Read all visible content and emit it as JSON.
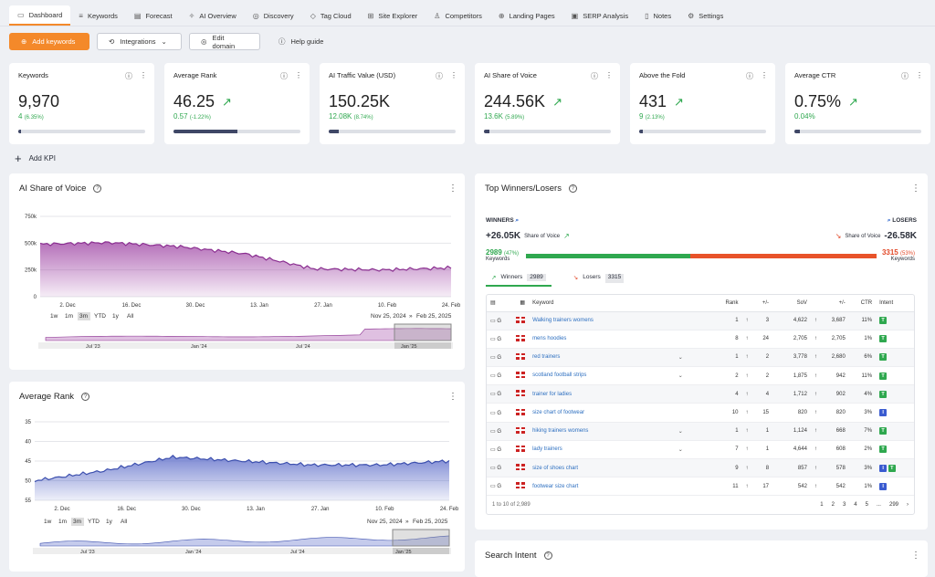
{
  "nav": [
    {
      "label": "Dashboard",
      "icon": "dashboard-icon",
      "glyph": "▭",
      "active": true
    },
    {
      "label": "Keywords",
      "icon": "keywords-icon",
      "glyph": "≡"
    },
    {
      "label": "Forecast",
      "icon": "forecast-icon",
      "glyph": "▤"
    },
    {
      "label": "AI Overview",
      "icon": "ai-sparkle-icon",
      "glyph": "✧"
    },
    {
      "label": "Discovery",
      "icon": "compass-icon",
      "glyph": "◎"
    },
    {
      "label": "Tag Cloud",
      "icon": "tag-icon",
      "glyph": "◇"
    },
    {
      "label": "Site Explorer",
      "icon": "sitemap-icon",
      "glyph": "⊞"
    },
    {
      "label": "Competitors",
      "icon": "trophy-icon",
      "glyph": "♙"
    },
    {
      "label": "Landing Pages",
      "icon": "target-icon",
      "glyph": "⊕"
    },
    {
      "label": "SERP Analysis",
      "icon": "serp-icon",
      "glyph": "▣"
    },
    {
      "label": "Notes",
      "icon": "notes-icon",
      "glyph": "▯"
    },
    {
      "label": "Settings",
      "icon": "gear-icon",
      "glyph": "⚙"
    }
  ],
  "actions": {
    "add_keywords": "Add keywords",
    "integrations": "Integrations",
    "edit_domain": "Edit domain",
    "help_guide": "Help guide"
  },
  "kpis": [
    {
      "title": "Keywords",
      "value": "9,970",
      "delta": "4",
      "pct": "(6.35%)",
      "trend": false,
      "bar": 0.02
    },
    {
      "title": "Average Rank",
      "value": "46.25",
      "delta": "0.57",
      "pct": "(-1.22%)",
      "trend": true,
      "bar": 0.5
    },
    {
      "title": "AI Traffic Value (USD)",
      "value": "150.25K",
      "delta": "12.08K",
      "pct": "(8.74%)",
      "trend": false,
      "bar": 0.08
    },
    {
      "title": "AI Share of Voice",
      "value": "244.56K",
      "delta": "13.6K",
      "pct": "(5.89%)",
      "trend": true,
      "bar": 0.04
    },
    {
      "title": "Above the Fold",
      "value": "431",
      "delta": "9",
      "pct": "(2.13%)",
      "trend": true,
      "bar": 0.03
    },
    {
      "title": "Average CTR",
      "value": "0.75%",
      "delta": "0.04%",
      "pct": "",
      "trend": true,
      "bar": 0.04
    }
  ],
  "add_kpi": "Add KPI",
  "sov": {
    "title": "AI Share of Voice",
    "yticks": [
      "750k",
      "500k",
      "250k",
      "0"
    ],
    "xticks": [
      "2. Dec",
      "16. Dec",
      "30. Dec",
      "13. Jan",
      "27. Jan",
      "10. Feb",
      "24. Feb"
    ],
    "ranges": [
      "1w",
      "1m",
      "3m",
      "YTD",
      "1y",
      "All"
    ],
    "selected": "3m",
    "from": "Nov 25, 2024",
    "to": "Feb 25, 2025",
    "nav_ticks": [
      "Jul '23",
      "Jan '24",
      "Jul '24",
      "Jan '25"
    ]
  },
  "rank": {
    "title": "Average Rank",
    "yticks": [
      "35",
      "40",
      "45",
      "50",
      "55"
    ],
    "xticks": [
      "2. Dec",
      "16. Dec",
      "30. Dec",
      "13. Jan",
      "27. Jan",
      "10. Feb",
      "24. Feb"
    ],
    "ranges": [
      "1w",
      "1m",
      "3m",
      "YTD",
      "1y",
      "All"
    ],
    "selected": "3m",
    "from": "Nov 25, 2024",
    "to": "Feb 25, 2025",
    "nav_ticks": [
      "Jul '23",
      "Jan '24",
      "Jul '24",
      "Jan '25"
    ]
  },
  "chart_data": [
    {
      "type": "area",
      "title": "AI Share of Voice",
      "xlabel": "",
      "ylabel": "",
      "ylim": [
        0,
        750000
      ],
      "x": [
        "2. Dec",
        "16. Dec",
        "30. Dec",
        "13. Jan",
        "27. Jan",
        "10. Feb",
        "24. Feb"
      ],
      "series": [
        {
          "values": [
            490000,
            505000,
            470000,
            400000,
            260000,
            250000,
            270000
          ]
        }
      ]
    },
    {
      "type": "area",
      "title": "Average Rank",
      "xlabel": "",
      "ylabel": "",
      "ylim": [
        35,
        55
      ],
      "x": [
        "2. Dec",
        "16. Dec",
        "30. Dec",
        "13. Jan",
        "27. Jan",
        "10. Feb",
        "24. Feb"
      ],
      "series": [
        {
          "values": [
            50,
            47.5,
            44,
            45,
            46,
            46,
            45
          ]
        }
      ]
    }
  ],
  "winners": {
    "title": "Top Winners/Losers",
    "winners_label": "WINNERS",
    "losers_label": "LOSERS",
    "win_sov": "+26.05K",
    "lose_sov": "-26.58K",
    "sov_label": "Share of Voice",
    "win_kw": "2989",
    "win_pct": "(47%)",
    "lose_kw": "3315",
    "lose_pct": "(53%)",
    "kw_label": "Keywords",
    "win_share": 0.47,
    "tab_winners": "Winners",
    "tab_winners_count": "2989",
    "tab_losers": "Losers",
    "tab_losers_count": "3315",
    "headers": [
      "Keyword",
      "Rank",
      "+/-",
      "SoV",
      "+/-",
      "CTR",
      "Intent"
    ],
    "rows": [
      {
        "kw": "Walking trainers womens",
        "rank": "1",
        "d": "3",
        "sov": "4,622",
        "sd": "3,687",
        "ctr": "11%",
        "intent": [
          "T"
        ],
        "exp": false
      },
      {
        "kw": "mens hoodies",
        "rank": "8",
        "d": "24",
        "sov": "2,705",
        "sd": "2,705",
        "ctr": "1%",
        "intent": [
          "T"
        ],
        "exp": false
      },
      {
        "kw": "red trainers",
        "rank": "1",
        "d": "2",
        "sov": "3,778",
        "sd": "2,680",
        "ctr": "6%",
        "intent": [
          "T"
        ],
        "exp": true
      },
      {
        "kw": "scotland football strips",
        "rank": "2",
        "d": "2",
        "sov": "1,875",
        "sd": "942",
        "ctr": "11%",
        "intent": [
          "T"
        ],
        "exp": true
      },
      {
        "kw": "trainer for ladies",
        "rank": "4",
        "d": "4",
        "sov": "1,712",
        "sd": "902",
        "ctr": "4%",
        "intent": [
          "T"
        ],
        "exp": false
      },
      {
        "kw": "size chart of footwear",
        "rank": "10",
        "d": "15",
        "sov": "820",
        "sd": "820",
        "ctr": "3%",
        "intent": [
          "I"
        ],
        "exp": false
      },
      {
        "kw": "hiking trainers womens",
        "rank": "1",
        "d": "1",
        "sov": "1,124",
        "sd": "668",
        "ctr": "7%",
        "intent": [
          "T"
        ],
        "exp": true
      },
      {
        "kw": "lady trainers",
        "rank": "7",
        "d": "1",
        "sov": "4,644",
        "sd": "608",
        "ctr": "2%",
        "intent": [
          "T"
        ],
        "exp": true
      },
      {
        "kw": "size of shoes chart",
        "rank": "9",
        "d": "8",
        "sov": "857",
        "sd": "578",
        "ctr": "3%",
        "intent": [
          "I",
          "T"
        ],
        "exp": false
      },
      {
        "kw": "footwear size chart",
        "rank": "11",
        "d": "17",
        "sov": "542",
        "sd": "542",
        "ctr": "1%",
        "intent": [
          "I"
        ],
        "exp": false
      }
    ],
    "footer": "1 to 10 of 2,989",
    "pages": [
      "1",
      "2",
      "3",
      "4",
      "5",
      "...",
      "299"
    ]
  },
  "search_intent": {
    "title": "Search Intent"
  }
}
